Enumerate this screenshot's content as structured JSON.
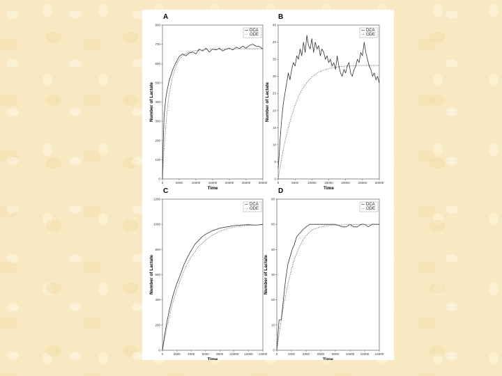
{
  "colors": {
    "background": "#f8e9c2",
    "panel": "#ffffff",
    "dca_line": "#333333",
    "ode_line": "#555555"
  },
  "chart_data": [
    {
      "type": "line",
      "panel_label": "A",
      "xlabel": "Time",
      "ylabel": "Number of Lactate",
      "xlim": [
        0,
        30000
      ],
      "ylim": [
        0,
        800
      ],
      "xticks": [
        0,
        5000,
        10000,
        15000,
        20000,
        25000,
        30000
      ],
      "yticks": [
        0,
        100,
        200,
        300,
        400,
        500,
        600,
        700,
        800
      ],
      "legend_position": "top-right",
      "series": [
        {
          "name": "DCA",
          "style": "solid",
          "x": [
            0,
            200,
            500,
            1000,
            1500,
            2000,
            3000,
            4000,
            5000,
            6000,
            7000,
            8000,
            9000,
            10000,
            11000,
            12000,
            13000,
            14000,
            15000,
            16000,
            17000,
            18000,
            19000,
            20000,
            21000,
            22000,
            23000,
            24000,
            25000,
            26000,
            27000,
            28000,
            29000,
            30000
          ],
          "y": [
            0,
            180,
            330,
            420,
            470,
            510,
            565,
            605,
            635,
            650,
            640,
            655,
            660,
            650,
            675,
            665,
            680,
            660,
            675,
            670,
            680,
            665,
            675,
            680,
            670,
            685,
            678,
            690,
            680,
            695,
            700,
            690,
            688,
            675
          ]
        },
        {
          "name": "ODE",
          "style": "dotted",
          "x": [
            0,
            500,
            1000,
            1500,
            2000,
            3000,
            4000,
            5000,
            6000,
            7000,
            8000,
            10000,
            12000,
            15000,
            20000,
            25000,
            30000
          ],
          "y": [
            0,
            160,
            280,
            370,
            440,
            530,
            585,
            620,
            640,
            652,
            660,
            668,
            672,
            675,
            676,
            677,
            677
          ]
        }
      ]
    },
    {
      "type": "line",
      "panel_label": "B",
      "xlabel": "Time",
      "ylabel": "Number of Lactate",
      "xlim": [
        0,
        30000
      ],
      "ylim": [
        0,
        45
      ],
      "xticks": [
        0,
        5000,
        10000,
        15000,
        20000,
        25000,
        30000
      ],
      "yticks": [
        0,
        5,
        10,
        15,
        20,
        25,
        30,
        35,
        40,
        45
      ],
      "legend_position": "top-right",
      "series": [
        {
          "name": "DCA",
          "style": "solid",
          "x": [
            0,
            300,
            600,
            1000,
            1500,
            2000,
            2500,
            3000,
            3500,
            4000,
            4500,
            5000,
            5500,
            6000,
            6500,
            7000,
            7500,
            8000,
            8500,
            9000,
            9500,
            10000,
            10500,
            11000,
            11500,
            12000,
            12500,
            13000,
            13500,
            14000,
            14500,
            15000,
            15500,
            16000,
            16500,
            17000,
            17500,
            18000,
            18500,
            19000,
            19500,
            20000,
            20500,
            21000,
            21500,
            22000,
            22500,
            23000,
            23500,
            24000,
            24500,
            25000,
            25500,
            26000,
            26500,
            27000,
            27500,
            28000,
            28500,
            29000,
            29500,
            30000
          ],
          "y": [
            3,
            7,
            12,
            17,
            22,
            25,
            28,
            31,
            29,
            32,
            34,
            33,
            36,
            35,
            38,
            36,
            40,
            37,
            42,
            39,
            38,
            41,
            37,
            40,
            38,
            39,
            36,
            38,
            37,
            35,
            36,
            34,
            35,
            33,
            34,
            32,
            36,
            33,
            31,
            30,
            32,
            31,
            33,
            34,
            31,
            30,
            32,
            33,
            35,
            34,
            37,
            36,
            40,
            37,
            35,
            33,
            32,
            30,
            31,
            29,
            30,
            28
          ]
        },
        {
          "name": "ODE",
          "style": "dotted",
          "x": [
            0,
            1000,
            2000,
            3000,
            4000,
            5000,
            6000,
            7000,
            8000,
            9000,
            10000,
            12000,
            14000,
            16000,
            18000,
            20000,
            22000,
            24000,
            26000,
            28000,
            30000
          ],
          "y": [
            0,
            6,
            11,
            15,
            18.5,
            21.5,
            24,
            26,
            27.5,
            28.8,
            29.8,
            31.2,
            32,
            32.5,
            32.8,
            33,
            33.1,
            33.2,
            33.2,
            33.2,
            33.2
          ]
        }
      ]
    },
    {
      "type": "line",
      "panel_label": "C",
      "xlabel": "Time",
      "ylabel": "Number of Lactate",
      "xlim": [
        0,
        14000
      ],
      "ylim": [
        0,
        1200
      ],
      "xticks": [
        0,
        2000,
        4000,
        6000,
        8000,
        10000,
        12000,
        14000
      ],
      "yticks": [
        0,
        200,
        400,
        600,
        800,
        1000,
        1200
      ],
      "legend_position": "top-right",
      "series": [
        {
          "name": "DCA",
          "style": "solid",
          "x": [
            0,
            300,
            600,
            1000,
            1500,
            2000,
            2500,
            3000,
            3500,
            4000,
            4500,
            5000,
            5500,
            6000,
            7000,
            8000,
            9000,
            10000,
            11000,
            12000,
            13000,
            14000
          ],
          "y": [
            0,
            120,
            220,
            330,
            440,
            530,
            600,
            680,
            740,
            790,
            840,
            870,
            900,
            920,
            950,
            970,
            980,
            990,
            995,
            997,
            993,
            1000
          ]
        },
        {
          "name": "ODE",
          "style": "dotted",
          "x": [
            0,
            500,
            1000,
            1500,
            2000,
            2500,
            3000,
            3500,
            4000,
            5000,
            6000,
            7000,
            8000,
            9000,
            10000,
            11000,
            12000,
            13000,
            14000
          ],
          "y": [
            0,
            150,
            280,
            390,
            480,
            560,
            630,
            690,
            740,
            820,
            875,
            915,
            945,
            965,
            978,
            987,
            992,
            995,
            997
          ]
        }
      ]
    },
    {
      "type": "line",
      "panel_label": "D",
      "xlabel": "Time",
      "ylabel": "Number of Lactate",
      "xlim": [
        0,
        14000
      ],
      "ylim": [
        0,
        60
      ],
      "xticks": [
        0,
        2000,
        4000,
        6000,
        8000,
        10000,
        12000,
        14000
      ],
      "yticks": [
        0,
        10,
        20,
        30,
        40,
        50,
        60
      ],
      "legend_position": "top-right",
      "series": [
        {
          "name": "DCA",
          "style": "solid",
          "x": [
            0,
            300,
            600,
            900,
            1200,
            1500,
            1800,
            2100,
            2400,
            2700,
            3000,
            3300,
            3600,
            4000,
            4500,
            5000,
            5500,
            6000,
            7000,
            8000,
            9000,
            9500,
            10000,
            10500,
            11000,
            11500,
            12000,
            12500,
            13000,
            13500,
            14000
          ],
          "y": [
            0,
            12,
            12,
            20,
            28,
            34,
            37,
            40,
            42,
            45,
            46,
            47,
            48,
            49,
            50,
            50,
            50,
            50,
            50,
            50,
            49,
            49,
            50,
            49,
            49,
            50,
            50,
            49,
            50,
            50,
            50
          ]
        },
        {
          "name": "ODE",
          "style": "dotted",
          "x": [
            0,
            500,
            1000,
            1500,
            2000,
            2500,
            3000,
            3500,
            4000,
            4500,
            5000,
            6000,
            7000,
            8000,
            10000,
            12000,
            14000
          ],
          "y": [
            0,
            10,
            19,
            26,
            32,
            37,
            40.5,
            43.5,
            45.5,
            47,
            48,
            49,
            49.5,
            49.7,
            49.9,
            50,
            50
          ]
        }
      ]
    }
  ]
}
